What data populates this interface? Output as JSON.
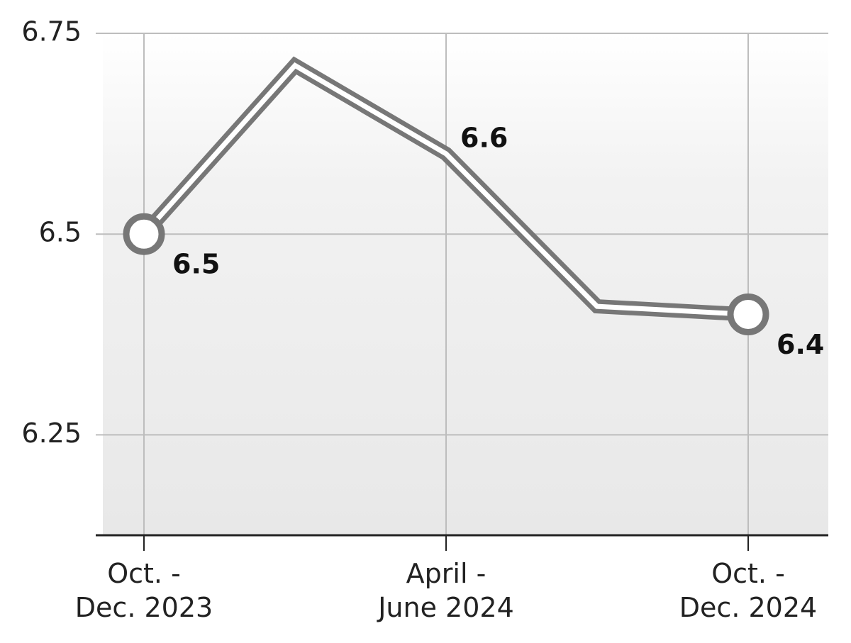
{
  "chart_data": {
    "type": "line",
    "categories": [
      "Oct. -\nDec. 2023",
      null,
      "April -\nJune 2024",
      null,
      "Oct. -\nDec. 2024"
    ],
    "values": [
      6.5,
      6.71,
      6.6,
      6.41,
      6.4
    ],
    "value_labels": [
      "6.5",
      null,
      "6.6",
      null,
      "6.4"
    ],
    "color": "#777777",
    "ylim": [
      6.125,
      6.75
    ],
    "yticks": [
      6.25,
      6.5,
      6.75
    ],
    "grid": true
  }
}
